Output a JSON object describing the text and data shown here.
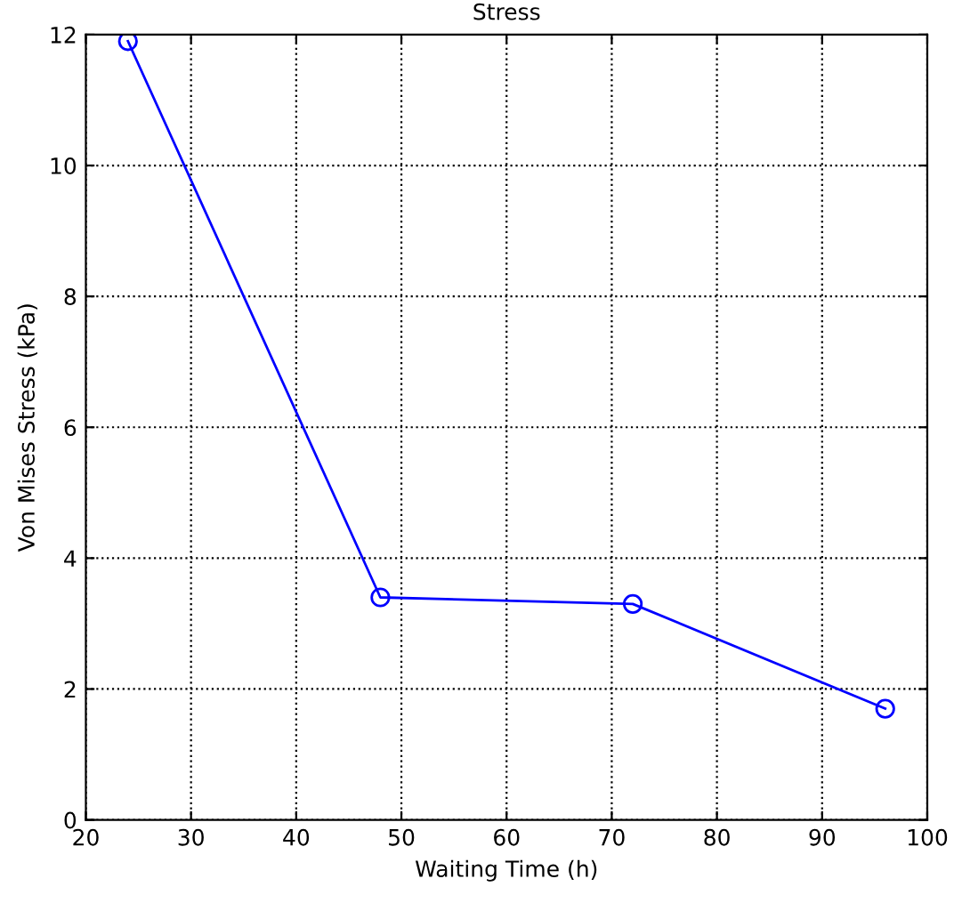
{
  "chart_data": {
    "type": "line",
    "title": "Stress",
    "xlabel": "Waiting Time (h)",
    "ylabel": "Von Mises Stress (kPa)",
    "x": [
      24,
      48,
      72,
      96
    ],
    "series": [
      {
        "color": "#0000ff",
        "values": [
          11.9,
          3.4,
          3.3,
          1.7
        ]
      }
    ],
    "xlim": [
      20,
      100
    ],
    "xticks": [
      20,
      30,
      40,
      50,
      60,
      70,
      80,
      90,
      100
    ],
    "ylim": [
      0,
      12
    ],
    "yticks": [
      0,
      2,
      4,
      6,
      8,
      10,
      12
    ],
    "grid": true,
    "marker": "circle",
    "line_style": "solid"
  }
}
